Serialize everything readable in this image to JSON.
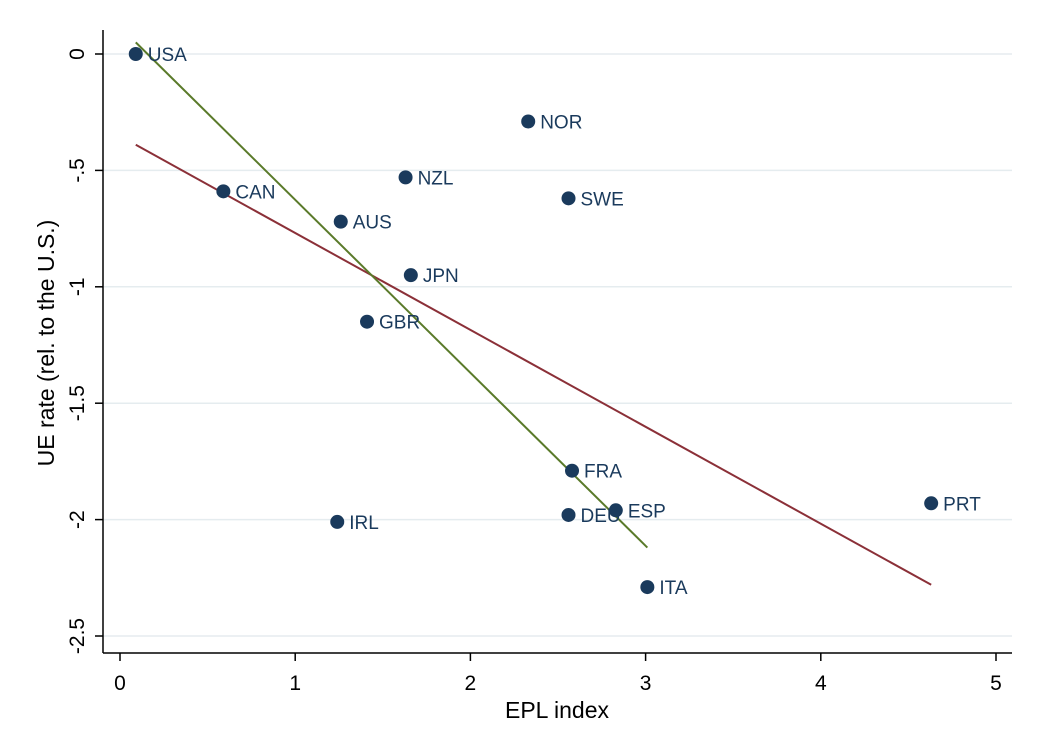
{
  "chart_data": {
    "type": "scatter",
    "xlabel": "EPL index",
    "ylabel": "UE rate (rel. to the U.S.)",
    "xlim": [
      0,
      5
    ],
    "ylim": [
      -2.5,
      0
    ],
    "xticks": [
      "0",
      "1",
      "2",
      "3",
      "4",
      "5"
    ],
    "yticks": [
      "0",
      "-.5",
      "-1",
      "-1.5",
      "-2",
      "-2.5"
    ],
    "grid": true,
    "points": [
      {
        "label": "USA",
        "x": 0.09,
        "y": 0.0
      },
      {
        "label": "CAN",
        "x": 0.59,
        "y": -0.59
      },
      {
        "label": "AUS",
        "x": 1.26,
        "y": -0.72
      },
      {
        "label": "NZL",
        "x": 1.63,
        "y": -0.53
      },
      {
        "label": "JPN",
        "x": 1.66,
        "y": -0.95
      },
      {
        "label": "GBR",
        "x": 1.41,
        "y": -1.15
      },
      {
        "label": "IRL",
        "x": 1.24,
        "y": -2.01
      },
      {
        "label": "NOR",
        "x": 2.33,
        "y": -0.29
      },
      {
        "label": "SWE",
        "x": 2.56,
        "y": -0.62
      },
      {
        "label": "FRA",
        "x": 2.58,
        "y": -1.79
      },
      {
        "label": "DEU",
        "x": 2.56,
        "y": -1.98
      },
      {
        "label": "ESP",
        "x": 2.83,
        "y": -1.96
      },
      {
        "label": "ITA",
        "x": 3.01,
        "y": -2.29
      },
      {
        "label": "PRT",
        "x": 4.63,
        "y": -1.93
      }
    ],
    "fit_lines": [
      {
        "color": "#8b3038",
        "x": [
          0.09,
          4.63
        ],
        "y": [
          -0.39,
          -2.28
        ]
      },
      {
        "color": "#5a7a2a",
        "x": [
          0.09,
          3.01
        ],
        "y": [
          0.05,
          -2.12
        ]
      }
    ],
    "colors": {
      "point": "#1a3a5c",
      "axis": "#000000",
      "grid": "#e5ecef"
    }
  }
}
